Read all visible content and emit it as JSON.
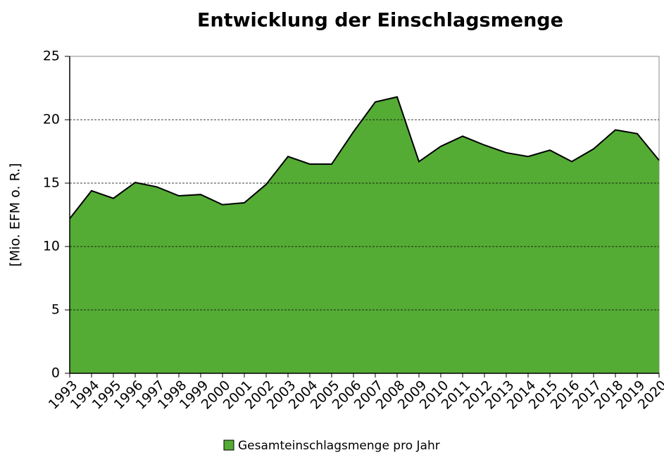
{
  "chart_data": {
    "type": "area",
    "title": "Entwicklung der Einschlagsmenge",
    "y_label": "[Mio. EFM o. R.]",
    "categories": [
      "1993",
      "1994",
      "1995",
      "1996",
      "1997",
      "1998",
      "1999",
      "2000",
      "2001",
      "2002",
      "2003",
      "2004",
      "2005",
      "2006",
      "2007",
      "2008",
      "2009",
      "2010",
      "2011",
      "2012",
      "2013",
      "2014",
      "2015",
      "2016",
      "2017",
      "2018",
      "2019",
      "2020"
    ],
    "series": [
      {
        "name": "Gesamteinschlagsmenge pro Jahr",
        "color": "#55ac35",
        "values": [
          12.2,
          14.4,
          13.8,
          15.05,
          14.7,
          14.0,
          14.1,
          13.3,
          13.45,
          14.9,
          17.1,
          16.5,
          16.5,
          19.05,
          21.4,
          21.8,
          16.7,
          17.9,
          18.7,
          18.0,
          17.4,
          17.1,
          17.6,
          16.7,
          17.7,
          19.2,
          18.9,
          16.8
        ]
      }
    ],
    "ylim": [
      0,
      25
    ],
    "yticks": [
      0,
      5,
      10,
      15,
      20,
      25
    ],
    "grid": true,
    "legend": "bottom"
  }
}
